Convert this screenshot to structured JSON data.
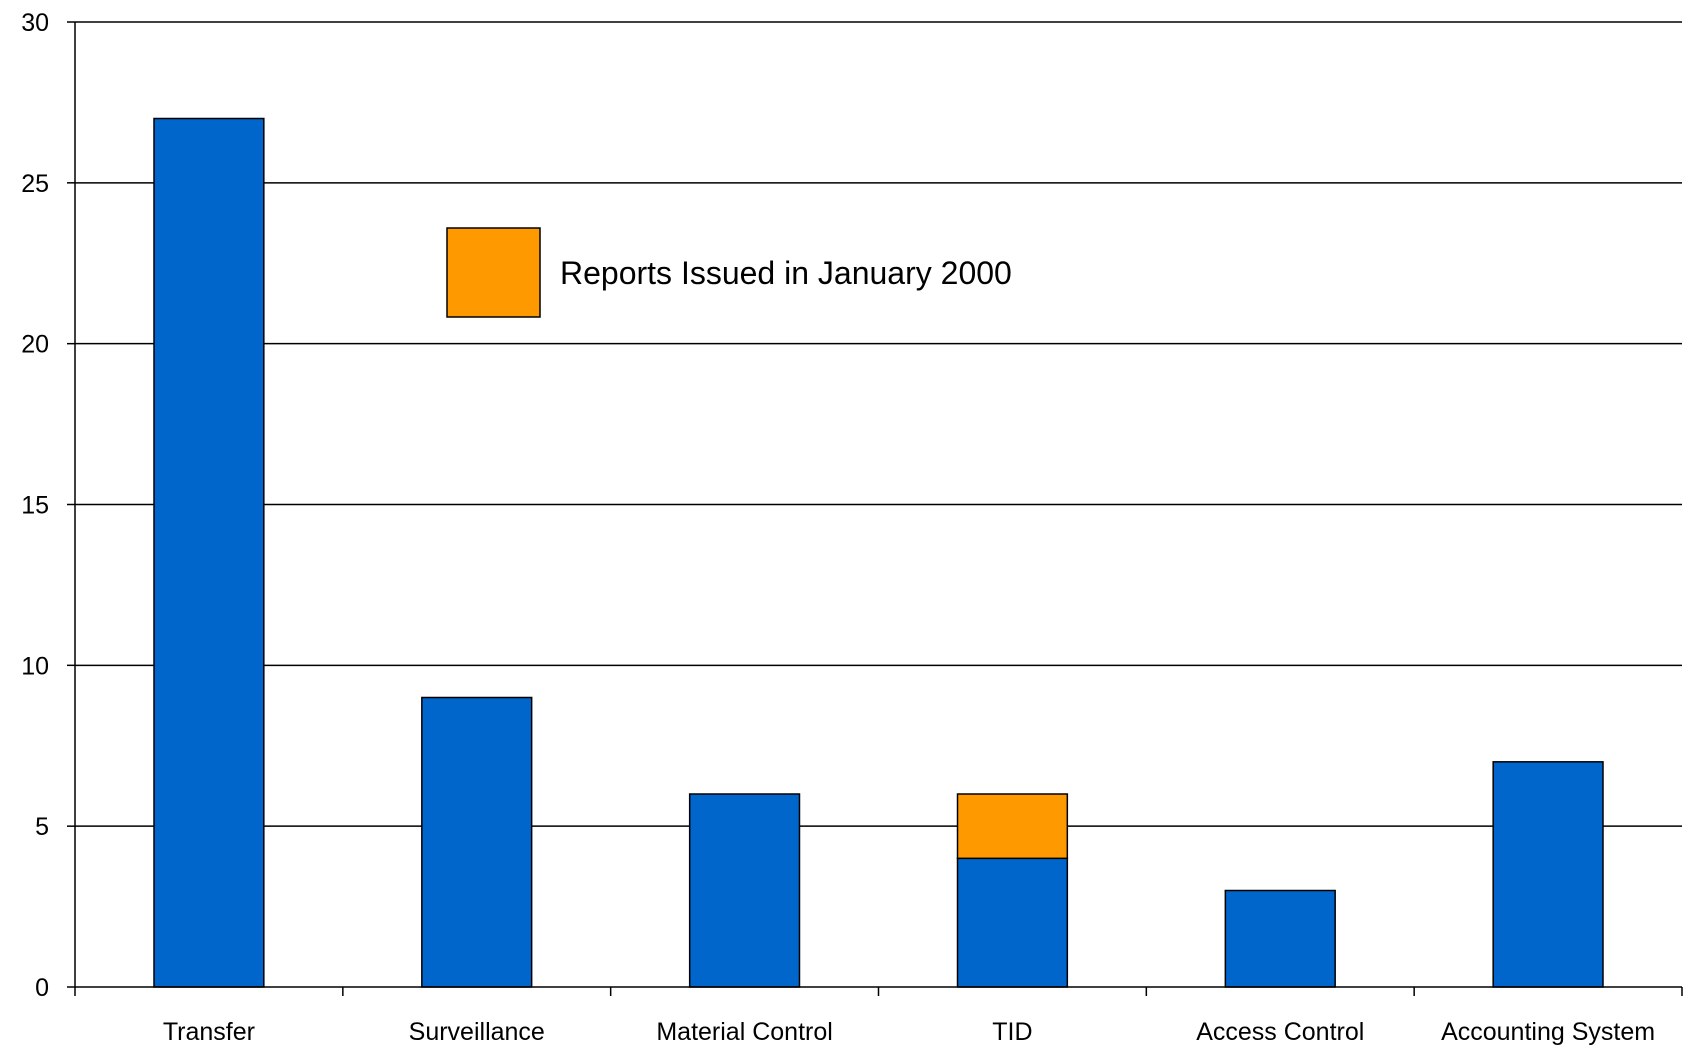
{
  "chart_data": {
    "type": "bar",
    "stacked": true,
    "title": "",
    "xlabel": "",
    "ylabel": "",
    "categories": [
      "Transfer",
      "Surveillance",
      "Material Control",
      "TID",
      "Access Control",
      "Accounting System"
    ],
    "series": [
      {
        "name": "",
        "color": "#0066CC",
        "values": [
          27,
          9,
          6,
          4,
          3,
          7
        ]
      },
      {
        "name": "Reports Issued in January 2000",
        "color": "#FF9900",
        "values": [
          0,
          0,
          0,
          2,
          0,
          0
        ]
      }
    ],
    "ylim": [
      0,
      30
    ],
    "yticks": [
      0,
      5,
      10,
      15,
      20,
      25,
      30
    ],
    "grid": true,
    "legend": {
      "placement": "top-left inside plot",
      "entries": [
        {
          "label": "Reports Issued in January 2000",
          "color": "#FF9900"
        }
      ]
    }
  }
}
